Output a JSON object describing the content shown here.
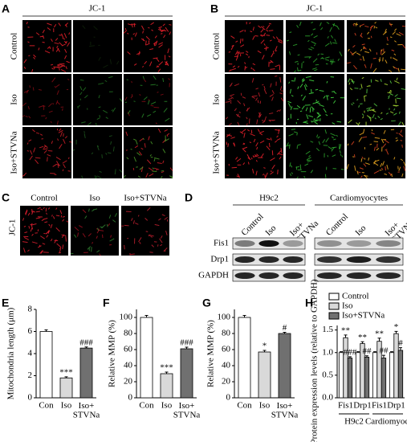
{
  "panels": {
    "a": {
      "letter": "A",
      "title": "JC-1",
      "rows": [
        "Control",
        "Iso",
        "Iso+STVNa"
      ]
    },
    "b": {
      "letter": "B",
      "title": "JC-1",
      "rows": [
        "Control",
        "Iso",
        "Iso+STVNa"
      ]
    },
    "c": {
      "letter": "C",
      "label": "JC-1",
      "columns": [
        "Control",
        "Iso",
        "Iso+STVNa"
      ]
    },
    "d": {
      "letter": "D",
      "groups": [
        "H9c2",
        "Cardiomyocytes"
      ],
      "lanes": [
        "Control",
        "Iso",
        "Iso+ STVNa"
      ],
      "proteins": [
        "Fis1",
        "Drp1",
        "GAPDH"
      ]
    }
  },
  "chart_data": [
    {
      "type": "bar",
      "panel": "E",
      "ylabel": "Mitochondria length (μm)",
      "categories": [
        "Con",
        "Iso",
        "Iso+ STVNa"
      ],
      "values": [
        6.0,
        1.8,
        4.5
      ],
      "errors": [
        0.15,
        0.1,
        0.1
      ],
      "value_annotations": [
        null,
        "***",
        "###"
      ],
      "colors": [
        "#ffffff",
        "#d9d9d9",
        "#707070"
      ],
      "ylim": [
        0,
        8
      ],
      "yticks": [
        0,
        2,
        4,
        6,
        8
      ]
    },
    {
      "type": "bar",
      "panel": "F",
      "ylabel": "Relative MMP (%)",
      "categories": [
        "Con",
        "Iso",
        "Iso+ STVNa"
      ],
      "values": [
        100,
        30,
        61
      ],
      "errors": [
        2.5,
        2,
        2
      ],
      "value_annotations": [
        null,
        "***",
        "###"
      ],
      "colors": [
        "#ffffff",
        "#d9d9d9",
        "#707070"
      ],
      "ylim": [
        0,
        110
      ],
      "yticks": [
        0,
        20,
        40,
        60,
        80,
        100
      ]
    },
    {
      "type": "bar",
      "panel": "G",
      "ylabel": "Relative MMP (%)",
      "categories": [
        "Con",
        "Iso",
        "Iso+ STVNa"
      ],
      "values": [
        100,
        57,
        80
      ],
      "errors": [
        2.5,
        2,
        1.5
      ],
      "value_annotations": [
        null,
        "*",
        "#"
      ],
      "colors": [
        "#ffffff",
        "#d9d9d9",
        "#707070"
      ],
      "ylim": [
        0,
        110
      ],
      "yticks": [
        0,
        20,
        40,
        60,
        80,
        100
      ]
    },
    {
      "type": "grouped-bar",
      "panel": "H",
      "ylabel": "Protein expression levels (relative to GAPDH)",
      "categories": [
        "Fis1",
        "Drp1",
        "Fis1",
        "Drp1"
      ],
      "group_labels": [
        "H9c2",
        "Cardiomyocytes"
      ],
      "series": [
        {
          "name": "Control",
          "color": "#ffffff",
          "values": [
            1,
            1,
            1,
            1
          ],
          "errors": [
            0.02,
            0.02,
            0.02,
            0.02
          ],
          "value_annotations": [
            null,
            null,
            null,
            null
          ]
        },
        {
          "name": "Iso",
          "color": "#d9d9d9",
          "values": [
            1.33,
            1.2,
            1.25,
            1.42
          ],
          "errors": [
            0.06,
            0.04,
            0.07,
            0.05
          ],
          "value_annotations": [
            "**",
            "**",
            "**",
            "*"
          ]
        },
        {
          "name": "Iso+STVNa",
          "color": "#707070",
          "values": [
            0.88,
            0.9,
            0.88,
            1.05
          ],
          "errors": [
            0.03,
            0.03,
            0.06,
            0.06
          ],
          "value_annotations": [
            "###",
            "##",
            "##",
            "#"
          ]
        }
      ],
      "ylim": [
        0,
        1.6
      ],
      "yticks": [
        {
          "value": 0,
          "label": "0.0"
        },
        0.5,
        {
          "value": 1,
          "label": "1.0"
        },
        1.5
      ]
    }
  ]
}
